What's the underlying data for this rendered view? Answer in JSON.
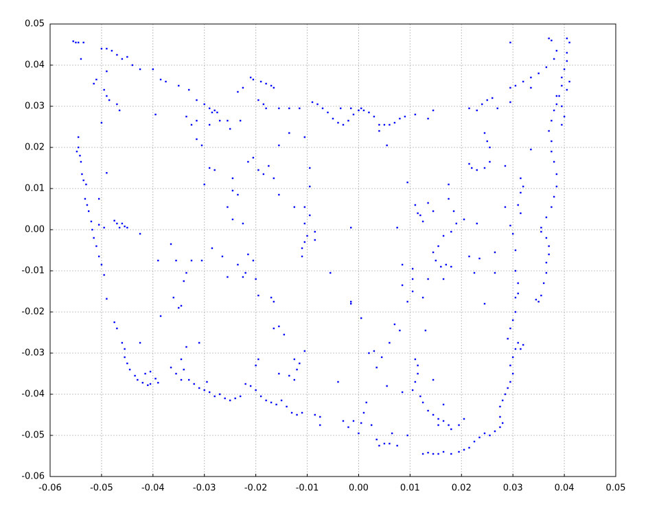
{
  "chart_data": {
    "type": "scatter",
    "color": "#0000ff",
    "grid": true,
    "xlim": [
      -0.06,
      0.05
    ],
    "ylim": [
      -0.06,
      0.05
    ],
    "xticks": [
      -0.06,
      -0.05,
      -0.04,
      -0.03,
      -0.02,
      -0.01,
      {
        "value": 0,
        "label": "0.00"
      },
      0.01,
      0.02,
      0.03,
      0.04,
      0.05
    ],
    "yticks": [
      -0.06,
      -0.05,
      -0.04,
      -0.03,
      -0.02,
      -0.01,
      {
        "value": 0,
        "label": "0.00"
      },
      0.01,
      0.02,
      0.03,
      0.04,
      0.05
    ],
    "x": [
      -0.0555,
      -0.055,
      -0.0545,
      -0.0535,
      -0.054,
      -0.05,
      -0.049,
      -0.048,
      -0.047,
      -0.046,
      -0.045,
      -0.044,
      -0.0425,
      -0.049,
      -0.051,
      -0.0515,
      -0.0495,
      -0.049,
      -0.0485,
      -0.047,
      -0.0465,
      -0.05,
      -0.04,
      -0.0395,
      -0.0385,
      -0.0545,
      -0.0545,
      -0.0548,
      -0.0542,
      -0.054,
      -0.0538,
      -0.0535,
      -0.053,
      -0.0532,
      -0.0528,
      -0.0525,
      -0.052,
      -0.0518,
      -0.0515,
      -0.051,
      -0.0505,
      -0.05,
      -0.0495,
      -0.049,
      -0.0505,
      -0.0475,
      -0.047,
      -0.046,
      -0.0455,
      -0.045,
      -0.0465,
      -0.0505,
      -0.0495,
      -0.0425,
      -0.049,
      -0.0475,
      -0.047,
      -0.046,
      -0.0455,
      -0.0455,
      -0.045,
      -0.0445,
      -0.0435,
      -0.043,
      -0.042,
      -0.041,
      -0.0405,
      -0.0415,
      -0.0405,
      -0.0425,
      -0.0395,
      -0.039,
      -0.0365,
      -0.0355,
      -0.0345,
      -0.034,
      -0.033,
      -0.032,
      -0.031,
      -0.03,
      -0.029,
      -0.028,
      -0.027,
      -0.026,
      -0.025,
      -0.024,
      -0.023,
      -0.022,
      -0.021,
      -0.02,
      -0.019,
      -0.018,
      -0.017,
      -0.016,
      -0.015,
      -0.014,
      -0.013,
      -0.012,
      -0.011,
      -0.0135,
      -0.012,
      -0.0115,
      -0.0125,
      -0.0155,
      -0.02,
      -0.0195,
      -0.0085,
      -0.0075,
      -0.0075,
      -0.031,
      -0.0295,
      -0.003,
      -0.002,
      -0.001,
      0,
      0.0005,
      0.001,
      0.0015,
      0.0025,
      0.0035,
      0.004,
      0.005,
      0.006,
      0.0065,
      0.0075,
      0.0055,
      0.0035,
      0.002,
      0.003,
      0.0045,
      0.006,
      0.007,
      0.008,
      0.0005,
      -0.0015,
      -0.004,
      0.011,
      0.0115,
      0.0115,
      0.011,
      0.0105,
      0.012,
      0.0125,
      0.0135,
      0.0145,
      0.0155,
      0.0165,
      0.0175,
      0.018,
      0.0085,
      0.0095,
      0.0125,
      0.0135,
      0.0145,
      0.0155,
      0.0165,
      0.018,
      0.0195,
      0.0205,
      0.0215,
      0.0225,
      0.0235,
      0.0245,
      0.0255,
      0.0265,
      0.0275,
      0.028,
      0.0275,
      0.0275,
      0.028,
      0.0285,
      0.029,
      0.0295,
      0.03,
      0.0295,
      0.03,
      0.0305,
      0.031,
      0.0315,
      0.032,
      0.029,
      0.0295,
      0.03,
      0.0305,
      0.0305,
      0.031,
      0.031,
      0.0305,
      0.0305,
      0.03,
      0.0295,
      0.0345,
      0.035,
      0.0355,
      0.036,
      0.0365,
      0.0365,
      0.037,
      0.037,
      0.0365,
      0.0355,
      0.0355,
      0.0365,
      0.0375,
      0.038,
      0.0385,
      0.0385,
      0.038,
      0.0375,
      0.0375,
      0.037,
      0.0375,
      0.038,
      0.0385,
      0.039,
      0.0395,
      0.0395,
      0.04,
      0.0405,
      0.0405,
      0.041,
      0.0405,
      0.0375,
      0.037,
      0.0385,
      0.038,
      0.0365,
      0.035,
      0.0335,
      0.032,
      0.0305,
      0.0295,
      0.0335,
      0.0295,
      0.0295,
      0.04,
      0.0395,
      0.0405,
      0.041,
      0.0395,
      0.0385,
      -0.009,
      -0.008,
      -0.007,
      -0.006,
      -0.005,
      -0.004,
      -0.003,
      -0.002,
      -0.001,
      0,
      0.001,
      0.002,
      0.003,
      0.004,
      0.005,
      0.006,
      0.007,
      0.008,
      0.009,
      0.011,
      0.0135,
      0.0145,
      -0.0035,
      -0.0015,
      0.0005,
      0.004,
      0.0055,
      0.0215,
      0.023,
      0.024,
      0.025,
      0.026,
      0.027,
      0.0245,
      0.025,
      0.0255,
      0.0215,
      0.022,
      0.023,
      0.0245,
      0.0255,
      0.0285,
      0.0315,
      0.032,
      0.0315,
      0.031,
      0.0315,
      0.0335,
      0.0285,
      -0.0375,
      -0.035,
      -0.033,
      -0.0315,
      -0.03,
      -0.029,
      -0.028,
      -0.0275,
      -0.027,
      -0.0285,
      -0.0335,
      -0.0325,
      -0.0315,
      -0.029,
      -0.0315,
      -0.0305,
      -0.0235,
      -0.0225,
      -0.021,
      -0.0205,
      -0.019,
      -0.018,
      -0.017,
      -0.0165,
      -0.0195,
      -0.0185,
      -0.018,
      -0.0155,
      -0.0135,
      -0.0115,
      -0.0255,
      -0.023,
      -0.025,
      -0.0155,
      -0.0135,
      -0.0105,
      -0.03,
      -0.029,
      -0.028,
      -0.0245,
      -0.0245,
      -0.0255,
      -0.0235,
      -0.0245,
      -0.0225,
      -0.0215,
      -0.0205,
      -0.0195,
      -0.0185,
      -0.0175,
      -0.0165,
      -0.0155,
      -0.0125,
      -0.0105,
      -0.0095,
      -0.0095,
      -0.0095,
      -0.0105,
      -0.01,
      -0.0105,
      -0.011,
      -0.011,
      -0.0085,
      -0.0085,
      -0.0055,
      -0.0015,
      -0.0015,
      -0.0285,
      -0.0305,
      -0.0325,
      -0.0335,
      -0.034,
      -0.0355,
      -0.0365,
      -0.035,
      -0.036,
      -0.039,
      -0.0385,
      -0.0255,
      -0.0235,
      -0.022,
      -0.0225,
      -0.0215,
      -0.02,
      -0.0205,
      -0.0265,
      -0.0195,
      -0.017,
      -0.0165,
      -0.0155,
      -0.0145,
      -0.0165,
      -0.0125,
      -0.0105,
      -0.0345,
      -0.0335,
      -0.0345,
      0.0075,
      0.0095,
      0.011,
      0.0115,
      0.012,
      0.0135,
      0.0145,
      0.0125,
      0.0175,
      0.0175,
      0.0185,
      0.019,
      0.018,
      0.0165,
      0.0155,
      0.0145,
      0.015,
      0.016,
      0.017,
      0.018,
      0.0165,
      0.0205,
      0.023,
      0.0235,
      0.0215,
      0.0225,
      0.0265,
      0.0265,
      0.0245,
      0.0105,
      0.0105,
      0.0105,
      0.0095,
      0.0085,
      0.0135,
      0.013,
      0.0125,
      0.0085,
      0.0145,
      0.0165,
      0.0195,
      0.0205,
      0.0155
    ],
    "y": [
      0.0458,
      0.0455,
      0.0455,
      0.0455,
      0.0415,
      0.044,
      0.044,
      0.0435,
      0.0425,
      0.0415,
      0.042,
      0.04,
      0.039,
      0.0385,
      0.0365,
      0.0355,
      0.034,
      0.0325,
      0.0315,
      0.0305,
      0.029,
      0.026,
      0.039,
      0.028,
      0.0365,
      0.0225,
      0.02,
      0.019,
      0.018,
      0.0165,
      0.0135,
      0.012,
      0.011,
      0.0075,
      0.006,
      0.0045,
      0.002,
      0,
      -0.002,
      -0.004,
      -0.0065,
      -0.0085,
      -0.011,
      0.0138,
      0.0075,
      0.0022,
      0.0015,
      0.0015,
      0.0008,
      0.0005,
      0.0005,
      0.0012,
      0.0005,
      -0.001,
      -0.0168,
      -0.0225,
      -0.024,
      -0.0275,
      -0.029,
      -0.031,
      -0.0325,
      -0.034,
      -0.0355,
      -0.0365,
      -0.0372,
      -0.0378,
      -0.0375,
      -0.035,
      -0.0345,
      -0.0275,
      -0.0362,
      -0.0372,
      -0.0335,
      -0.035,
      -0.0365,
      -0.034,
      -0.0365,
      -0.0375,
      -0.0385,
      -0.039,
      -0.0395,
      -0.0405,
      -0.04,
      -0.041,
      -0.0415,
      -0.041,
      -0.0405,
      -0.0375,
      -0.038,
      -0.039,
      -0.0405,
      -0.0415,
      -0.042,
      -0.0425,
      -0.0415,
      -0.043,
      -0.0445,
      -0.045,
      -0.0445,
      -0.0355,
      -0.034,
      -0.0325,
      -0.0365,
      -0.035,
      -0.033,
      -0.0315,
      -0.045,
      -0.0455,
      -0.0475,
      -0.0275,
      -0.037,
      -0.0465,
      -0.048,
      -0.0465,
      -0.0495,
      -0.047,
      -0.0445,
      -0.042,
      -0.0475,
      -0.051,
      -0.0525,
      -0.052,
      -0.052,
      -0.0495,
      -0.0525,
      -0.038,
      -0.0335,
      -0.03,
      -0.0295,
      -0.031,
      -0.0275,
      -0.023,
      -0.0245,
      -0.0215,
      -0.0175,
      -0.037,
      -0.0315,
      -0.033,
      -0.035,
      -0.037,
      -0.039,
      -0.0405,
      -0.042,
      -0.044,
      -0.045,
      -0.046,
      -0.0465,
      -0.0475,
      -0.0485,
      -0.0395,
      -0.05,
      -0.0545,
      -0.0542,
      -0.0545,
      -0.0545,
      -0.054,
      -0.0545,
      -0.054,
      -0.0535,
      -0.053,
      -0.0515,
      -0.0505,
      -0.0495,
      -0.05,
      -0.049,
      -0.048,
      -0.047,
      -0.0455,
      -0.043,
      -0.0415,
      -0.04,
      -0.0385,
      -0.037,
      -0.035,
      -0.033,
      -0.031,
      -0.029,
      -0.0275,
      -0.029,
      -0.028,
      -0.0265,
      -0.024,
      -0.022,
      -0.02,
      -0.0165,
      -0.0155,
      -0.013,
      -0.01,
      -0.005,
      -0.001,
      0.001,
      -0.017,
      -0.0175,
      -0.016,
      -0.013,
      -0.0105,
      -0.008,
      -0.006,
      -0.004,
      -0.002,
      -0.0005,
      0.0005,
      0.003,
      0.0055,
      0.008,
      0.0105,
      0.0135,
      0.0165,
      0.019,
      0.0215,
      0.024,
      0.0265,
      0.029,
      0.0305,
      0.0325,
      0.035,
      0.037,
      0.039,
      0.041,
      0.043,
      0.0455,
      0.0465,
      0.046,
      0.0465,
      0.0435,
      0.0415,
      0.0395,
      0.038,
      0.037,
      0.036,
      0.035,
      0.0345,
      0.0345,
      0.0455,
      0.031,
      0.0275,
      0.03,
      0.034,
      0.036,
      0.0255,
      0.0325,
      0.031,
      0.0305,
      0.0295,
      0.0285,
      0.027,
      0.026,
      0.0255,
      0.0265,
      0.028,
      0.029,
      0.029,
      0.0285,
      0.0275,
      0.0255,
      0.0255,
      0.0255,
      0.026,
      0.027,
      0.0275,
      0.028,
      0.027,
      0.029,
      0.0295,
      0.0295,
      0.0295,
      0.024,
      0.0205,
      0.0295,
      0.029,
      0.0305,
      0.0315,
      0.032,
      0.0295,
      0.0235,
      0.0215,
      0.02,
      0.016,
      0.015,
      0.0145,
      0.015,
      0.0165,
      0.0155,
      0.0125,
      0.0105,
      0.009,
      0.006,
      0.004,
      0.0195,
      0.0055,
      0.036,
      0.035,
      0.034,
      0.0315,
      0.0305,
      0.0295,
      0.029,
      0.0285,
      0.0265,
      0.0285,
      0.0275,
      0.0255,
      0.0265,
      0.0255,
      0.022,
      0.0205,
      0.0335,
      0.0345,
      0.037,
      0.0365,
      0.036,
      0.0355,
      0.035,
      0.0345,
      0.0315,
      0.0305,
      0.0295,
      0.0295,
      0.0295,
      0.0295,
      0.0265,
      0.0265,
      0.0245,
      0.0205,
      0.0235,
      0.0225,
      0.011,
      0.015,
      0.0145,
      0.0125,
      0.0095,
      0.0055,
      0.0085,
      0.0025,
      0.0015,
      0.0165,
      0.0175,
      0.0145,
      0.0135,
      0.0155,
      0.0125,
      0.0085,
      0.0055,
      0.0055,
      0.0105,
      0.015,
      0.0035,
      0.0015,
      -0.0015,
      -0.003,
      -0.0045,
      -0.0065,
      -0.0025,
      -0.0005,
      -0.0105,
      0.0005,
      -0.018,
      -0.0045,
      -0.0075,
      -0.0075,
      -0.0105,
      -0.0125,
      -0.0075,
      -0.0035,
      -0.019,
      -0.0165,
      -0.0075,
      -0.021,
      -0.0115,
      -0.0085,
      -0.0105,
      -0.0115,
      -0.006,
      -0.012,
      -0.0075,
      -0.0065,
      -0.016,
      -0.0165,
      -0.0175,
      -0.0235,
      -0.0255,
      -0.024,
      -0.0315,
      -0.0295,
      -0.0185,
      -0.0285,
      -0.0315,
      0.0005,
      0.0115,
      0.006,
      0.004,
      0.0035,
      0.0065,
      0.0045,
      0.002,
      0.0075,
      0.011,
      0.0045,
      0.0015,
      -0.0005,
      -0.0015,
      -0.004,
      -0.0055,
      -0.0075,
      -0.009,
      -0.0085,
      -0.009,
      -0.012,
      0.0025,
      0.0015,
      -0.007,
      -0.0065,
      -0.0105,
      -0.0055,
      -0.0105,
      -0.018,
      -0.0095,
      -0.012,
      -0.015,
      -0.0175,
      -0.0135,
      -0.012,
      -0.0245,
      -0.0165,
      -0.0085,
      -0.0365,
      -0.0425,
      -0.0475,
      -0.046,
      -0.0475
    ]
  }
}
